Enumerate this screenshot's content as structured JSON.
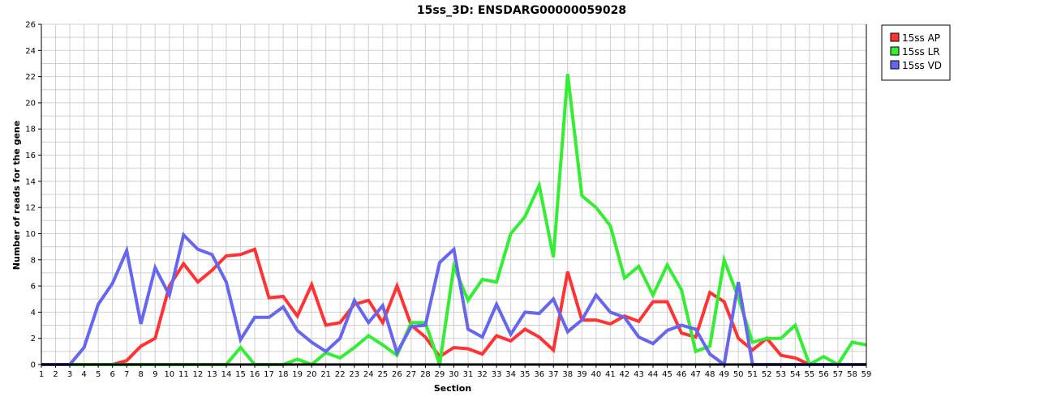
{
  "chart_data": {
    "type": "line",
    "title": "15ss_3D: ENSDARG00000059028",
    "xlabel": "Section",
    "ylabel": "Number of reads for the gene",
    "ylim": [
      0,
      26
    ],
    "yticks": [
      0,
      2,
      4,
      6,
      8,
      10,
      12,
      14,
      16,
      18,
      20,
      22,
      24,
      26
    ],
    "x": [
      1,
      2,
      3,
      4,
      5,
      6,
      7,
      8,
      9,
      10,
      11,
      12,
      13,
      14,
      15,
      16,
      17,
      18,
      19,
      20,
      21,
      22,
      23,
      24,
      25,
      26,
      27,
      28,
      29,
      30,
      31,
      32,
      33,
      34,
      35,
      36,
      37,
      38,
      39,
      40,
      41,
      42,
      43,
      44,
      45,
      46,
      47,
      48,
      49,
      50,
      51,
      52,
      53,
      54,
      55,
      56,
      57,
      58,
      59
    ],
    "grid": true,
    "legend_position": "top-right",
    "series": [
      {
        "name": "15ss AP",
        "color": "#ff3333",
        "values": [
          0,
          0,
          0,
          0,
          0,
          0,
          0.3,
          1.4,
          2.0,
          6.0,
          7.7,
          6.3,
          7.2,
          8.3,
          8.4,
          8.8,
          5.1,
          5.2,
          3.7,
          6.1,
          3.0,
          3.2,
          4.6,
          4.9,
          3.2,
          6.0,
          3.0,
          2.1,
          0.6,
          1.3,
          1.2,
          0.8,
          2.2,
          1.8,
          2.7,
          2.1,
          1.1,
          7.1,
          3.4,
          3.4,
          3.1,
          3.7,
          3.3,
          4.8,
          4.8,
          2.4,
          2.1,
          5.5,
          4.8,
          2.0,
          1.1,
          2.0,
          0.7,
          0.5,
          0,
          0,
          0,
          0,
          0
        ]
      },
      {
        "name": "15ss LR",
        "color": "#33ee33",
        "values": [
          0,
          0,
          0,
          0,
          0,
          0,
          0,
          0,
          0,
          0,
          0,
          0,
          0,
          0,
          1.3,
          0,
          0,
          0,
          0.4,
          0,
          0.9,
          0.5,
          1.3,
          2.2,
          1.5,
          0.7,
          3.2,
          3.2,
          0,
          7.5,
          4.9,
          6.5,
          6.3,
          10.0,
          11.3,
          13.7,
          8.2,
          22.2,
          12.9,
          12.0,
          10.6,
          6.6,
          7.5,
          5.3,
          7.6,
          5.7,
          1.0,
          1.4,
          8.0,
          5.1,
          1.7,
          2.0,
          2.0,
          3.0,
          0,
          0.6,
          0,
          1.7,
          1.5
        ]
      },
      {
        "name": "15ss VD",
        "color": "#6666ee",
        "values": [
          0,
          0,
          0,
          1.3,
          4.6,
          6.2,
          8.7,
          3.1,
          7.4,
          5.3,
          9.9,
          8.8,
          8.4,
          6.3,
          1.9,
          3.6,
          3.6,
          4.4,
          2.6,
          1.7,
          1.0,
          2.0,
          4.9,
          3.2,
          4.5,
          0.9,
          2.9,
          3.0,
          7.8,
          8.8,
          2.7,
          2.1,
          4.6,
          2.3,
          4.0,
          3.9,
          5.0,
          2.5,
          3.4,
          5.3,
          4.0,
          3.6,
          2.1,
          1.6,
          2.6,
          3.0,
          2.7,
          0.8,
          0,
          6.3,
          0,
          0,
          0,
          0,
          0,
          0,
          0,
          0,
          0
        ]
      }
    ]
  }
}
